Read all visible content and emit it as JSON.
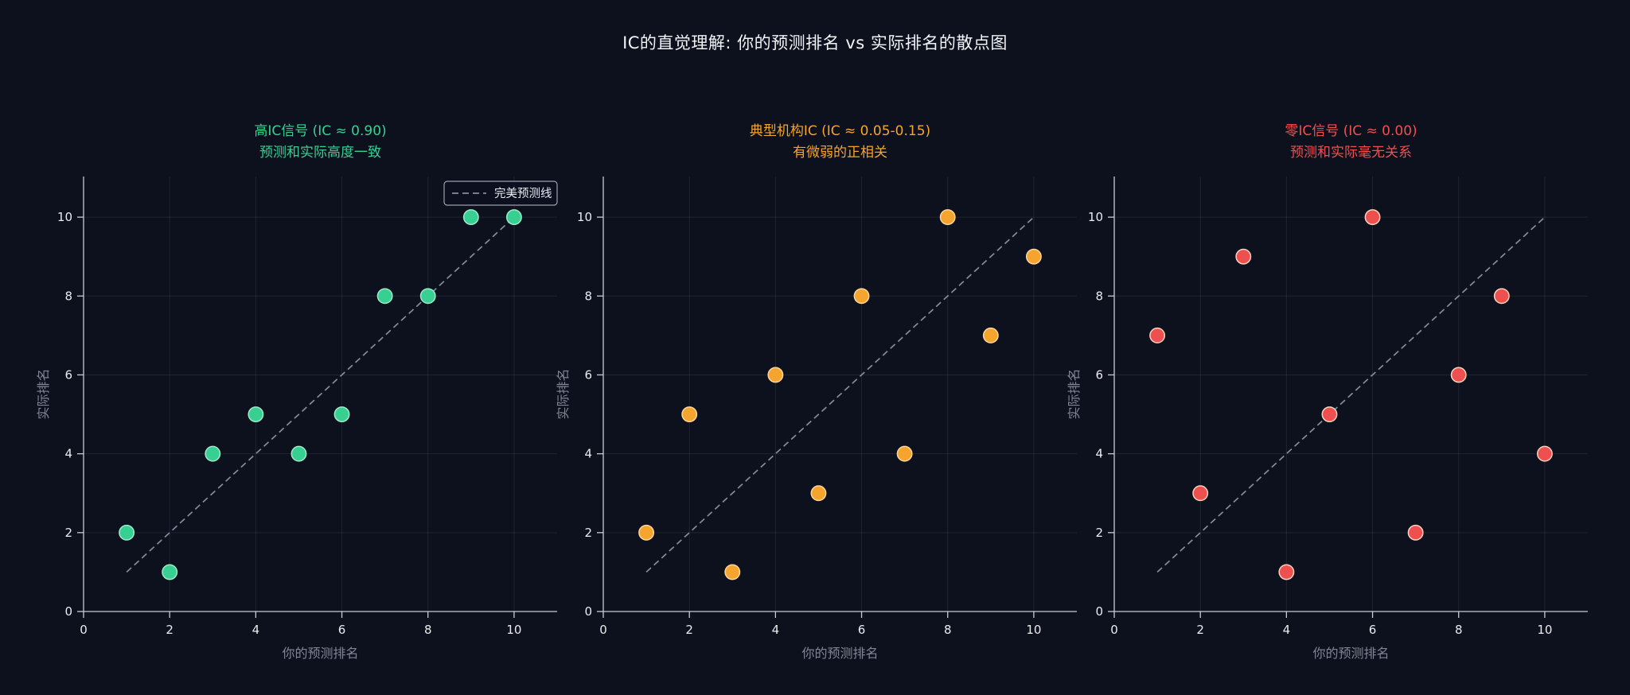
{
  "figure_title": "IC的直觉理解: 你的预测排名 vs 实际排名的散点图",
  "axes": {
    "xlabel": "你的预测排名",
    "ylabel": "实际排名",
    "xticks": [
      0,
      2,
      4,
      6,
      8,
      10
    ],
    "yticks": [
      0,
      2,
      4,
      6,
      8,
      10
    ],
    "xlim": [
      0,
      11
    ],
    "ylim": [
      0,
      11.03
    ],
    "grid": true
  },
  "legend": {
    "label": "完美预测线",
    "position": "upper right"
  },
  "colors": {
    "background": "#0d111e",
    "spine": "#c6ccd6",
    "tick_label": "#e9ebf0",
    "axis_label": "#7f8694",
    "grid": "rgba(200,210,230,0.10)",
    "dashed_line": "#858b99",
    "legend_border": "#9aa0ac",
    "legend_text": "#e9ebf0",
    "title": "#f2f3f6"
  },
  "chart_data": [
    {
      "type": "scatter",
      "title_line1": "高IC信号 (IC ≈ 0.90)",
      "title_line2": "预测和实际高度一致",
      "color": "#38d092",
      "edge_color": "#9fe9c9",
      "x": [
        1,
        2,
        3,
        4,
        5,
        6,
        7,
        8,
        9,
        10
      ],
      "y": [
        2,
        1,
        4,
        5,
        4,
        5,
        8,
        8,
        10,
        10
      ],
      "ref_line": {
        "x": [
          1,
          10
        ],
        "y": [
          1,
          10
        ]
      },
      "show_legend": true
    },
    {
      "type": "scatter",
      "title_line1": "典型机构IC (IC ≈ 0.05-0.15)",
      "title_line2": "有微弱的正相关",
      "color": "#f5a52e",
      "edge_color": "#fcd69e",
      "x": [
        1,
        2,
        3,
        4,
        5,
        6,
        7,
        8,
        9,
        10
      ],
      "y": [
        2,
        5,
        1,
        6,
        3,
        8,
        4,
        10,
        7,
        9
      ],
      "ref_line": {
        "x": [
          1,
          10
        ],
        "y": [
          1,
          10
        ]
      },
      "show_legend": false
    },
    {
      "type": "scatter",
      "title_line1": "零IC信号 (IC ≈ 0.00)",
      "title_line2": "预测和实际毫无关系",
      "color": "#ee5050",
      "edge_color": "#fad2bd",
      "x": [
        1,
        2,
        3,
        4,
        5,
        6,
        7,
        8,
        9,
        10
      ],
      "y": [
        7,
        3,
        9,
        1,
        5,
        10,
        2,
        6,
        8,
        4
      ],
      "ref_line": {
        "x": [
          1,
          10
        ],
        "y": [
          1,
          10
        ]
      },
      "show_legend": false
    }
  ]
}
